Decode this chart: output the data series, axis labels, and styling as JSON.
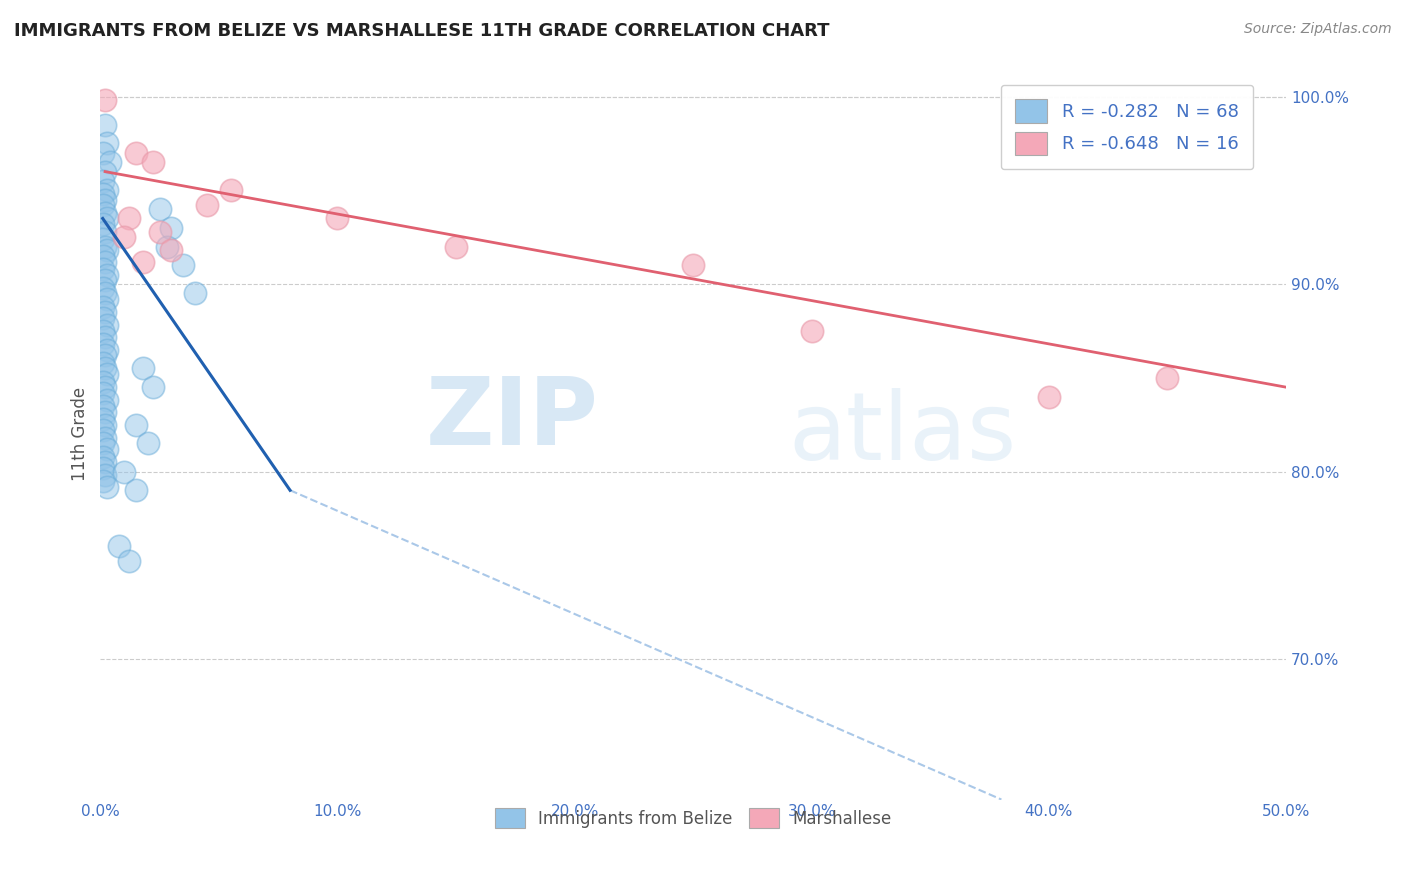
{
  "title": "IMMIGRANTS FROM BELIZE VS MARSHALLESE 11TH GRADE CORRELATION CHART",
  "source_text": "Source: ZipAtlas.com",
  "ylabel": "11th Grade",
  "xlim": [
    0.0,
    0.5
  ],
  "ylim": [
    0.625,
    1.015
  ],
  "xtick_labels": [
    "0.0%",
    "10.0%",
    "20.0%",
    "30.0%",
    "40.0%",
    "50.0%"
  ],
  "xtick_vals": [
    0.0,
    0.1,
    0.2,
    0.3,
    0.4,
    0.5
  ],
  "ytick_labels": [
    "70.0%",
    "80.0%",
    "90.0%",
    "100.0%"
  ],
  "ytick_vals": [
    0.7,
    0.8,
    0.9,
    1.0
  ],
  "r_blue": -0.282,
  "n_blue": 68,
  "r_pink": -0.648,
  "n_pink": 16,
  "blue_color": "#93c4e8",
  "pink_color": "#f4a8b8",
  "blue_edge_color": "#6aacd8",
  "pink_edge_color": "#e898a8",
  "blue_line_color": "#2060b0",
  "pink_line_color": "#e06070",
  "dash_line_color": "#aac8e8",
  "blue_scatter": [
    [
      0.002,
      0.985
    ],
    [
      0.003,
      0.975
    ],
    [
      0.001,
      0.97
    ],
    [
      0.004,
      0.965
    ],
    [
      0.002,
      0.96
    ],
    [
      0.001,
      0.955
    ],
    [
      0.003,
      0.95
    ],
    [
      0.001,
      0.948
    ],
    [
      0.002,
      0.945
    ],
    [
      0.001,
      0.942
    ],
    [
      0.002,
      0.938
    ],
    [
      0.003,
      0.935
    ],
    [
      0.001,
      0.932
    ],
    [
      0.002,
      0.928
    ],
    [
      0.001,
      0.924
    ],
    [
      0.002,
      0.92
    ],
    [
      0.003,
      0.918
    ],
    [
      0.001,
      0.915
    ],
    [
      0.002,
      0.912
    ],
    [
      0.001,
      0.908
    ],
    [
      0.003,
      0.905
    ],
    [
      0.002,
      0.902
    ],
    [
      0.001,
      0.898
    ],
    [
      0.002,
      0.895
    ],
    [
      0.003,
      0.892
    ],
    [
      0.001,
      0.888
    ],
    [
      0.002,
      0.885
    ],
    [
      0.001,
      0.882
    ],
    [
      0.003,
      0.878
    ],
    [
      0.001,
      0.875
    ],
    [
      0.002,
      0.872
    ],
    [
      0.001,
      0.868
    ],
    [
      0.003,
      0.865
    ],
    [
      0.002,
      0.862
    ],
    [
      0.001,
      0.858
    ],
    [
      0.002,
      0.855
    ],
    [
      0.003,
      0.852
    ],
    [
      0.001,
      0.848
    ],
    [
      0.002,
      0.845
    ],
    [
      0.001,
      0.842
    ],
    [
      0.003,
      0.838
    ],
    [
      0.001,
      0.835
    ],
    [
      0.002,
      0.832
    ],
    [
      0.001,
      0.828
    ],
    [
      0.002,
      0.825
    ],
    [
      0.001,
      0.822
    ],
    [
      0.002,
      0.818
    ],
    [
      0.001,
      0.815
    ],
    [
      0.003,
      0.812
    ],
    [
      0.001,
      0.808
    ],
    [
      0.002,
      0.805
    ],
    [
      0.001,
      0.802
    ],
    [
      0.002,
      0.798
    ],
    [
      0.001,
      0.795
    ],
    [
      0.003,
      0.792
    ],
    [
      0.025,
      0.94
    ],
    [
      0.03,
      0.93
    ],
    [
      0.028,
      0.92
    ],
    [
      0.035,
      0.91
    ],
    [
      0.04,
      0.895
    ],
    [
      0.018,
      0.855
    ],
    [
      0.022,
      0.845
    ],
    [
      0.015,
      0.825
    ],
    [
      0.02,
      0.815
    ],
    [
      0.01,
      0.8
    ],
    [
      0.015,
      0.79
    ],
    [
      0.008,
      0.76
    ],
    [
      0.012,
      0.752
    ]
  ],
  "pink_scatter": [
    [
      0.002,
      0.998
    ],
    [
      0.015,
      0.97
    ],
    [
      0.022,
      0.965
    ],
    [
      0.055,
      0.95
    ],
    [
      0.045,
      0.942
    ],
    [
      0.012,
      0.935
    ],
    [
      0.025,
      0.928
    ],
    [
      0.01,
      0.925
    ],
    [
      0.03,
      0.918
    ],
    [
      0.018,
      0.912
    ],
    [
      0.1,
      0.935
    ],
    [
      0.15,
      0.92
    ],
    [
      0.25,
      0.91
    ],
    [
      0.3,
      0.875
    ],
    [
      0.45,
      0.85
    ],
    [
      0.4,
      0.84
    ]
  ],
  "blue_line_x": [
    0.001,
    0.08
  ],
  "blue_line_y": [
    0.935,
    0.79
  ],
  "dash_line_x": [
    0.08,
    0.38
  ],
  "dash_line_y": [
    0.79,
    0.625
  ],
  "pink_line_x": [
    0.002,
    0.5
  ],
  "pink_line_y": [
    0.96,
    0.845
  ],
  "watermark_zip": "ZIP",
  "watermark_atlas": "atlas",
  "background_color": "#ffffff",
  "grid_color": "#cccccc"
}
